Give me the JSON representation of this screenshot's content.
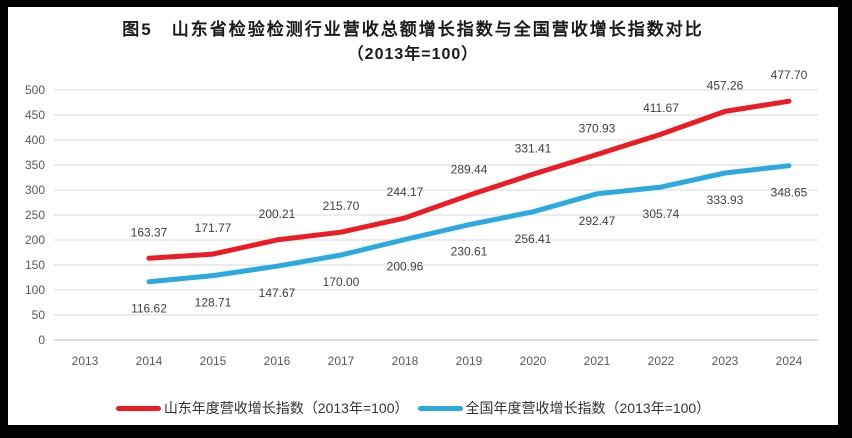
{
  "frame": {
    "border_color": "#000000",
    "background_color": "#ffffff"
  },
  "title": {
    "line1": "图5　山东省检验检测行业营收总额增长指数与全国营收增长指数对比",
    "line2": "（2013年=100）"
  },
  "chart_data": {
    "type": "line",
    "title": "图5 山东省检验检测行业营收总额增长指数与全国营收增长指数对比（2013年=100）",
    "categories": [
      "2013",
      "2014",
      "2015",
      "2016",
      "2017",
      "2018",
      "2019",
      "2020",
      "2021",
      "2022",
      "2023",
      "2024"
    ],
    "series": [
      {
        "name": "山东年度营收增长指数（2013年=100）",
        "color": "#ED1C24",
        "start_index": 1,
        "label_position": "above",
        "values": [
          163.37,
          171.77,
          200.21,
          215.7,
          244.17,
          289.44,
          331.41,
          370.93,
          411.67,
          457.26,
          477.7
        ]
      },
      {
        "name": "全国年度营收增长指数（2013年=100）",
        "color": "#2BAADF",
        "start_index": 1,
        "label_position": "below",
        "values": [
          116.62,
          128.71,
          147.67,
          170.0,
          200.96,
          230.61,
          256.41,
          292.47,
          305.74,
          333.93,
          348.65
        ]
      }
    ],
    "xlabel": "",
    "ylabel": "",
    "ylim": [
      0,
      500
    ],
    "yticks": [
      0,
      50,
      100,
      150,
      200,
      250,
      300,
      350,
      400,
      450,
      500
    ],
    "grid": "horizontal",
    "grid_color": "#D9D9D9",
    "zero_line_color": "#BFBFBF",
    "tick_label_color": "#595959",
    "data_label_color": "#404040",
    "legend_position": "bottom"
  }
}
